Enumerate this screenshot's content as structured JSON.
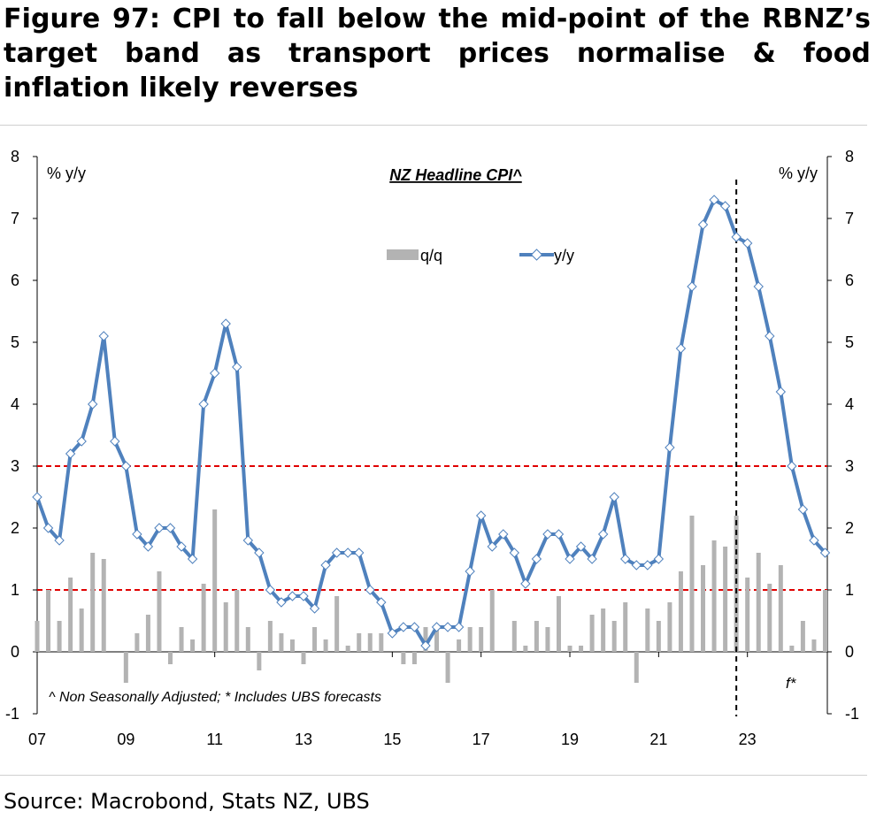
{
  "figure": {
    "title": "Figure 97: CPI to fall below the mid-point of the RBNZ’s target band as transport prices normalise & food inflation likely reverses",
    "source": "Source: Macrobond, Stats NZ, UBS"
  },
  "chart_data": {
    "type": "bar+line",
    "title": "NZ Headline CPI^",
    "ylabel_left": "% y/y",
    "ylabel_right": "% y/y",
    "ylim": [
      -1,
      8
    ],
    "yticks": [
      -1,
      0,
      1,
      2,
      3,
      4,
      5,
      6,
      7,
      8
    ],
    "xlim": [
      2007,
      2024.8
    ],
    "xticks": [
      {
        "x": 2007,
        "label": "07"
      },
      {
        "x": 2009,
        "label": "09"
      },
      {
        "x": 2011,
        "label": "11"
      },
      {
        "x": 2013,
        "label": "13"
      },
      {
        "x": 2015,
        "label": "15"
      },
      {
        "x": 2017,
        "label": "17"
      },
      {
        "x": 2019,
        "label": "19"
      },
      {
        "x": 2021,
        "label": "21"
      },
      {
        "x": 2023,
        "label": "23"
      }
    ],
    "target_band": [
      1,
      3
    ],
    "forecast_start": 2022.75,
    "forecast_label": "f*",
    "footnote": "^ Non Seasonally Adjusted; * Includes UBS forecasts",
    "legend": {
      "position": "top-center",
      "entries": [
        "q/q",
        "y/y"
      ]
    },
    "colors": {
      "bars": "#b3b3b3",
      "line": "#4f81bd",
      "band": "#e00000",
      "forecast_line": "#000000"
    },
    "x": [
      2007.0,
      2007.25,
      2007.5,
      2007.75,
      2008.0,
      2008.25,
      2008.5,
      2008.75,
      2009.0,
      2009.25,
      2009.5,
      2009.75,
      2010.0,
      2010.25,
      2010.5,
      2010.75,
      2011.0,
      2011.25,
      2011.5,
      2011.75,
      2012.0,
      2012.25,
      2012.5,
      2012.75,
      2013.0,
      2013.25,
      2013.5,
      2013.75,
      2014.0,
      2014.25,
      2014.5,
      2014.75,
      2015.0,
      2015.25,
      2015.5,
      2015.75,
      2016.0,
      2016.25,
      2016.5,
      2016.75,
      2017.0,
      2017.25,
      2017.5,
      2017.75,
      2018.0,
      2018.25,
      2018.5,
      2018.75,
      2019.0,
      2019.25,
      2019.5,
      2019.75,
      2020.0,
      2020.25,
      2020.5,
      2020.75,
      2021.0,
      2021.25,
      2021.5,
      2021.75,
      2022.0,
      2022.25,
      2022.5,
      2022.75,
      2023.0,
      2023.25,
      2023.5,
      2023.75,
      2024.0,
      2024.25,
      2024.5,
      2024.75
    ],
    "series": [
      {
        "name": "q/q",
        "type": "bar",
        "values": [
          0.5,
          1.0,
          0.5,
          1.2,
          0.7,
          1.6,
          1.5,
          0.0,
          -0.5,
          0.3,
          0.6,
          1.3,
          -0.2,
          0.4,
          0.2,
          1.1,
          2.3,
          0.8,
          1.0,
          0.4,
          -0.3,
          0.5,
          0.3,
          0.2,
          -0.2,
          0.4,
          0.2,
          0.9,
          0.1,
          0.3,
          0.3,
          0.3,
          0.0,
          -0.2,
          -0.2,
          0.4,
          0.4,
          -0.5,
          0.2,
          0.4,
          0.4,
          1.0,
          0.0,
          0.5,
          0.1,
          0.5,
          0.4,
          0.9,
          0.1,
          0.1,
          0.6,
          0.7,
          0.5,
          0.8,
          -0.5,
          0.7,
          0.5,
          0.8,
          1.3,
          2.2,
          1.4,
          1.8,
          1.7,
          2.2,
          1.2,
          1.6,
          1.1,
          1.4,
          0.1,
          0.5,
          0.2,
          1.0
        ]
      },
      {
        "name": "y/y",
        "type": "line",
        "values": [
          2.5,
          2.0,
          1.8,
          3.2,
          3.4,
          4.0,
          5.1,
          3.4,
          3.0,
          1.9,
          1.7,
          2.0,
          2.0,
          1.7,
          1.5,
          4.0,
          4.5,
          5.3,
          4.6,
          1.8,
          1.6,
          1.0,
          0.8,
          0.9,
          0.9,
          0.7,
          1.4,
          1.6,
          1.6,
          1.6,
          1.0,
          0.8,
          0.3,
          0.4,
          0.4,
          0.1,
          0.4,
          0.4,
          0.4,
          1.3,
          2.2,
          1.7,
          1.9,
          1.6,
          1.1,
          1.5,
          1.9,
          1.9,
          1.5,
          1.7,
          1.5,
          1.9,
          2.5,
          1.5,
          1.4,
          1.4,
          1.5,
          3.3,
          4.9,
          5.9,
          6.9,
          7.3,
          7.2,
          6.7,
          6.6,
          5.9,
          5.1,
          4.2,
          3.0,
          2.3,
          1.8,
          1.6
        ]
      }
    ]
  }
}
